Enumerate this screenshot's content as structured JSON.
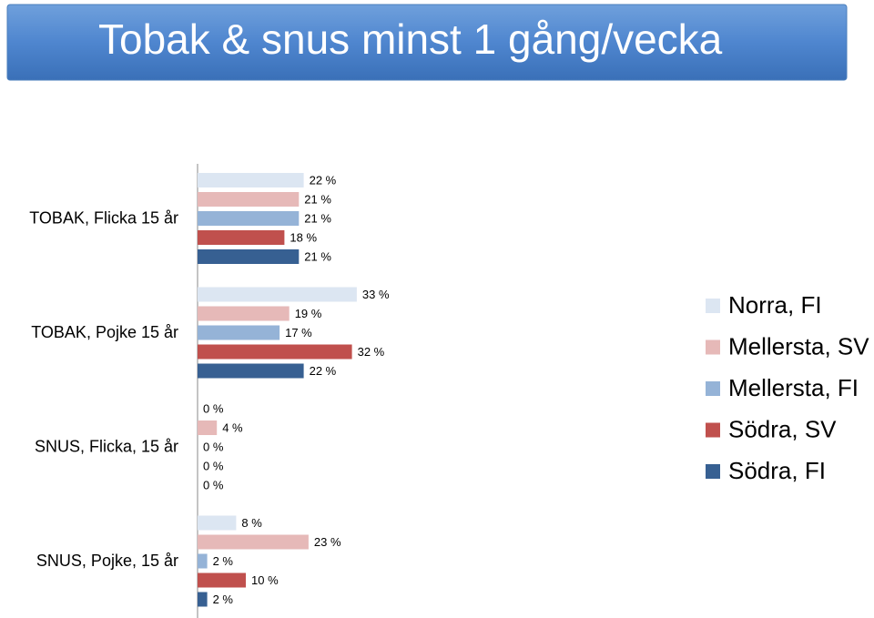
{
  "chart_data": {
    "type": "bar",
    "orientation": "horizontal",
    "title": "Tobak & snus minst 1 gång/vecka",
    "categories": [
      "TOBAK, Flicka 15 år",
      "TOBAK, Pojke 15 år",
      "SNUS, Flicka, 15 år",
      "SNUS, Pojke, 15 år"
    ],
    "series": [
      {
        "name": "Norra, FI",
        "color": "#dce6f2",
        "values": [
          22,
          33,
          0,
          8
        ],
        "value_labels": [
          "22 %",
          "33 %",
          "0 %",
          "8 %"
        ]
      },
      {
        "name": "Mellersta, SV",
        "color": "#e6b9b8",
        "values": [
          21,
          19,
          4,
          23
        ],
        "value_labels": [
          "21 %",
          "19 %",
          "4 %",
          "23 %"
        ]
      },
      {
        "name": "Mellersta, FI",
        "color": "#95b3d7",
        "values": [
          21,
          17,
          0,
          2
        ],
        "value_labels": [
          "21 %",
          "17 %",
          "0 %",
          "2 %"
        ]
      },
      {
        "name": "Södra, SV",
        "color": "#c0504d",
        "values": [
          18,
          32,
          0,
          10
        ],
        "value_labels": [
          "18 %",
          "32 %",
          "0 %",
          "10 %"
        ]
      },
      {
        "name": "Södra, FI",
        "color": "#376092",
        "values": [
          21,
          22,
          0,
          2
        ],
        "value_labels": [
          "21 %",
          "22 %",
          "0 %",
          "2 %"
        ]
      }
    ],
    "legend": "right"
  }
}
